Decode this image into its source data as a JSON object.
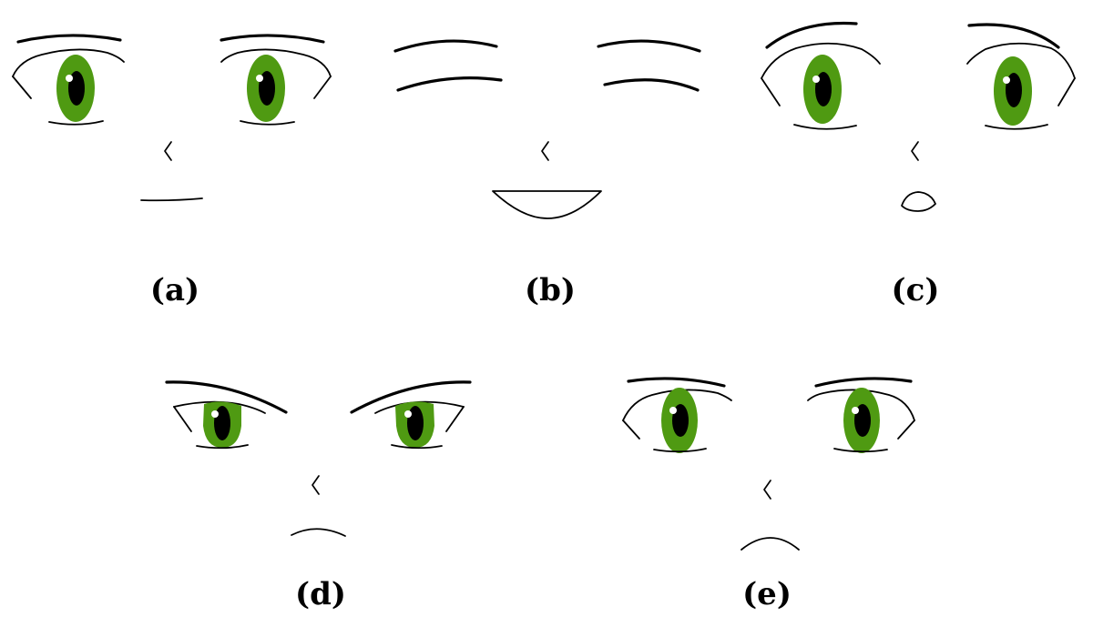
{
  "figure": {
    "panels": [
      {
        "id": "a",
        "label": "(a)"
      },
      {
        "id": "b",
        "label": "(b)"
      },
      {
        "id": "c",
        "label": "(c)"
      },
      {
        "id": "d",
        "label": "(d)"
      },
      {
        "id": "e",
        "label": "(e)"
      }
    ]
  },
  "colors": {
    "iris": "#4f9a12",
    "pupil": "#000000",
    "glint": "#ffffff",
    "line": "#000000"
  }
}
